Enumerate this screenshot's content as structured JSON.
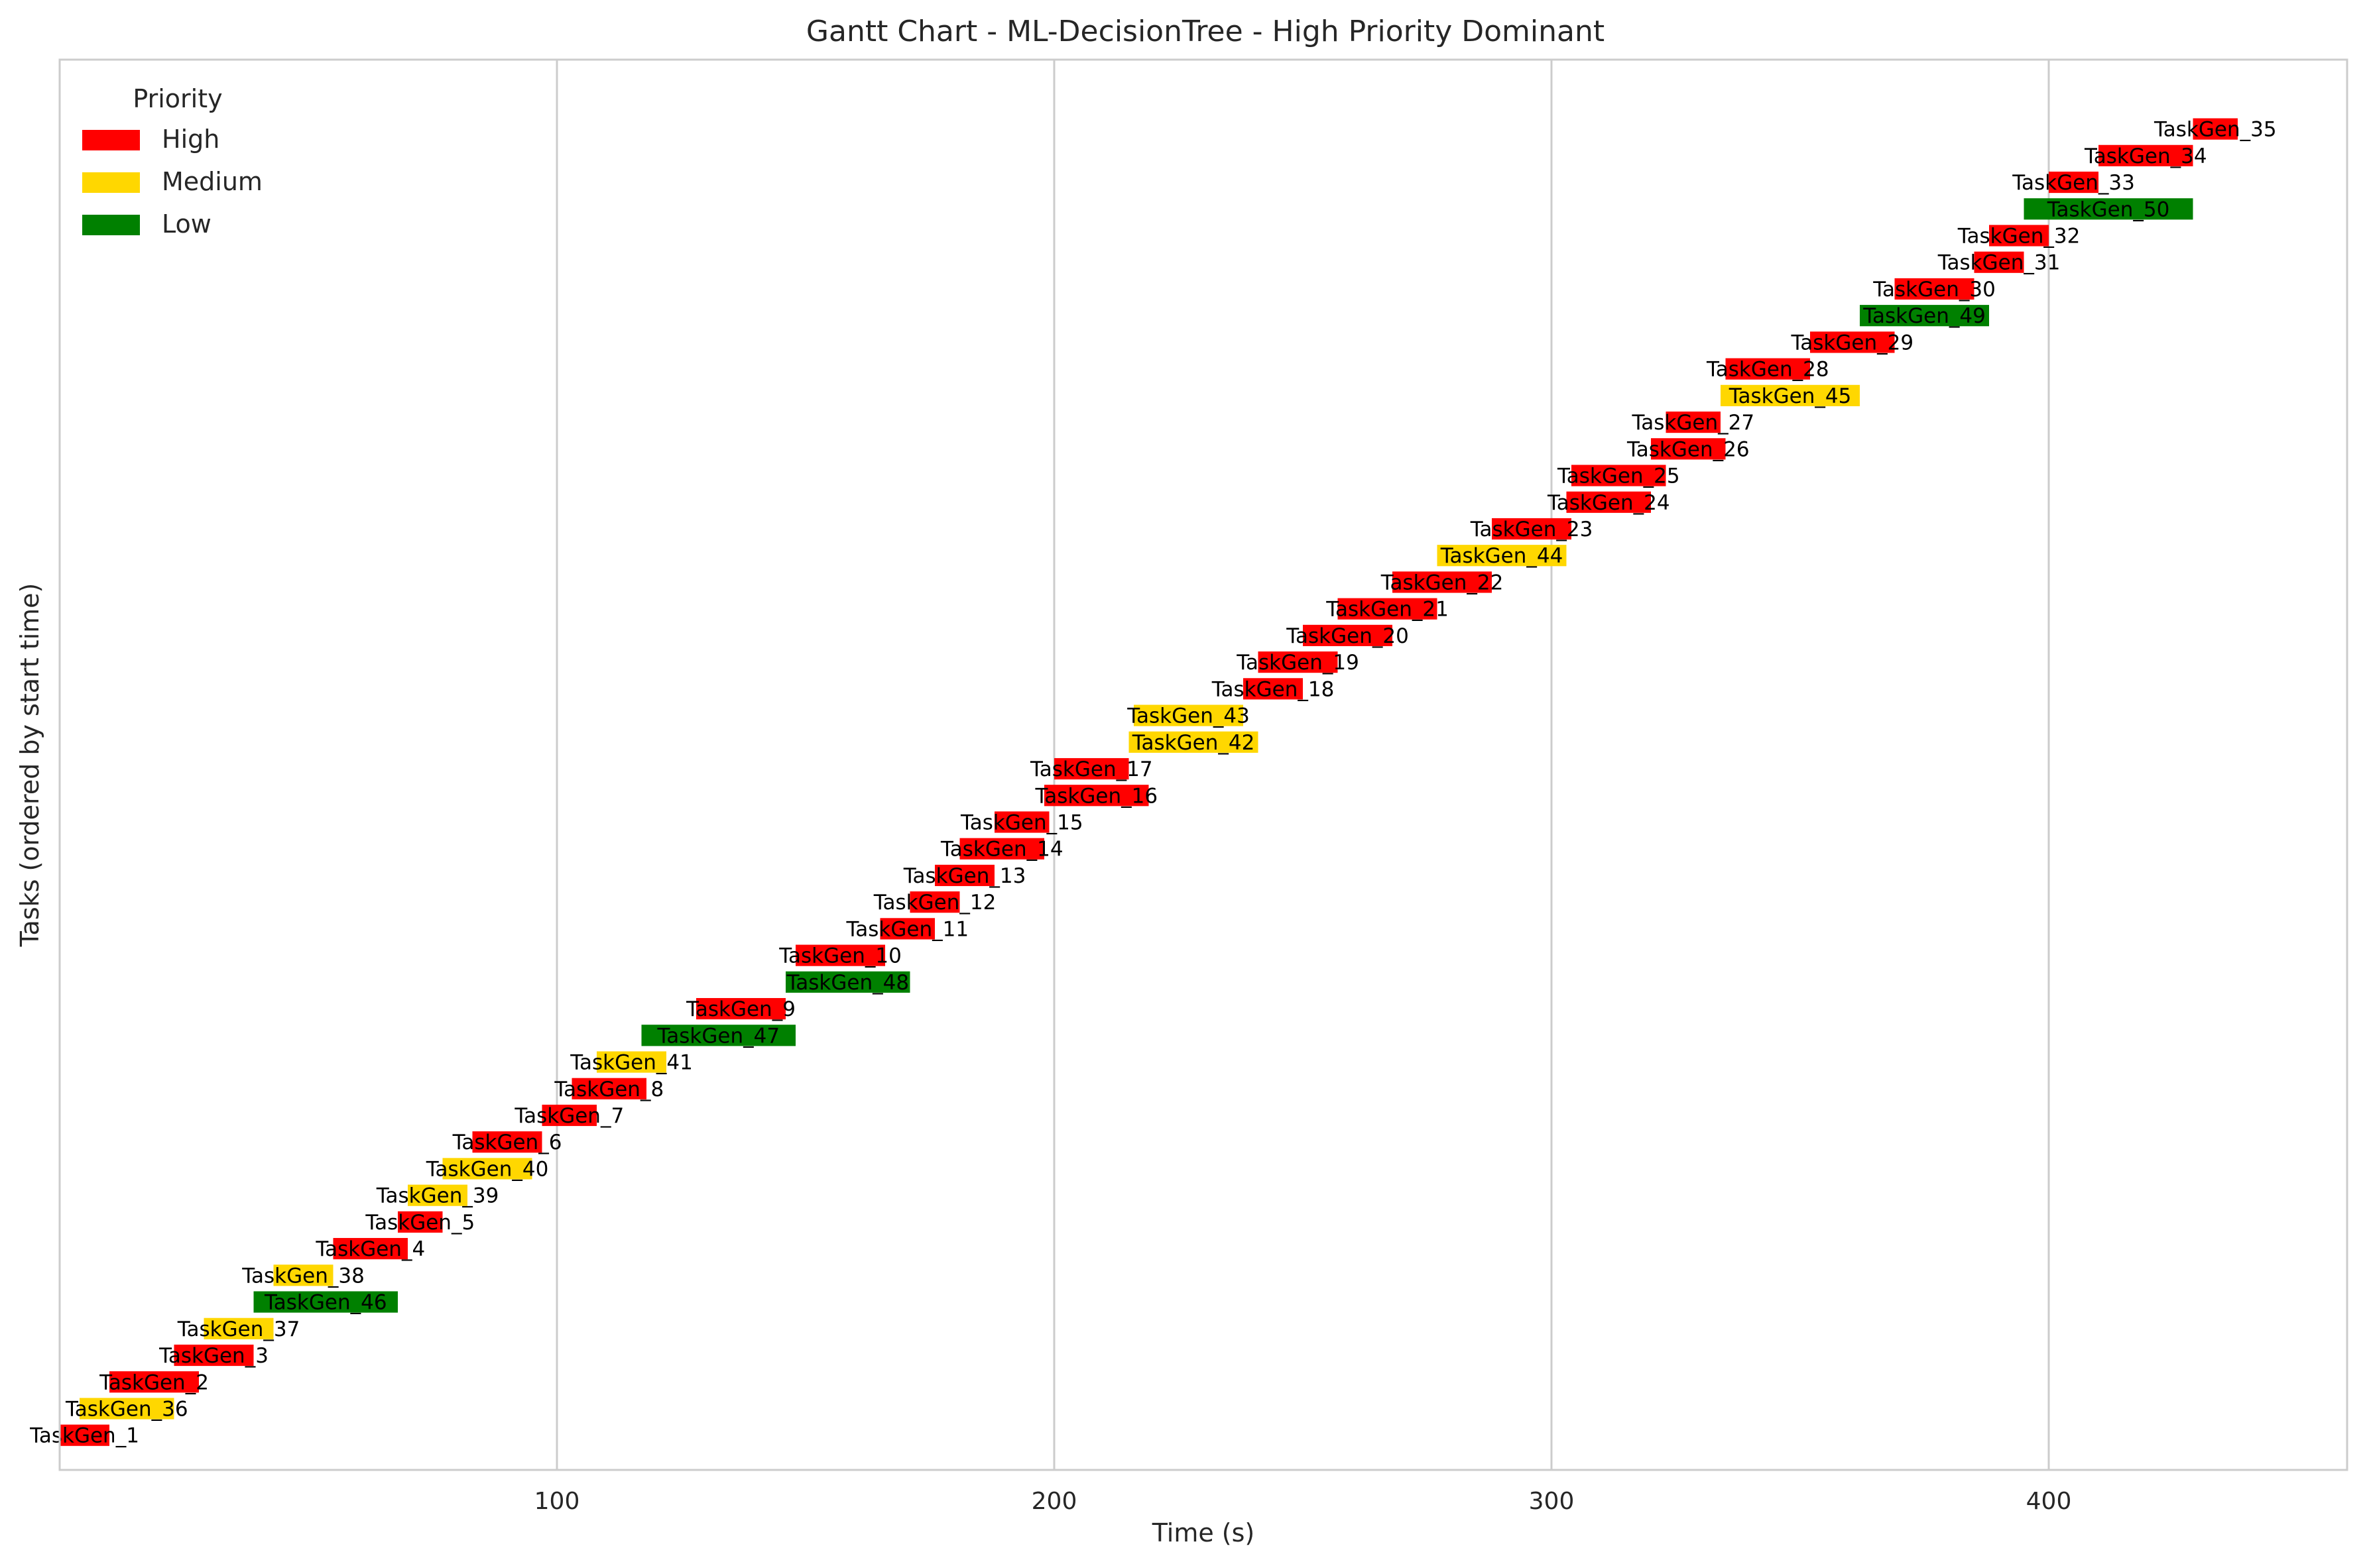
{
  "chart_data": {
    "type": "gantt",
    "title": "Gantt Chart - ML-DecisionTree - High Priority Dominant",
    "xlabel": "Time (s)",
    "ylabel": "Tasks (ordered by start time)",
    "xlim": [
      0,
      460
    ],
    "xticks": [
      100,
      200,
      300,
      400
    ],
    "grid": "vertical",
    "legend": {
      "title": "Priority",
      "placement": "top-left",
      "entries": [
        {
          "label": "High",
          "color": "#ff0000"
        },
        {
          "label": "Medium",
          "color": "#ffd700"
        },
        {
          "label": "Low",
          "color": "#008000"
        }
      ]
    },
    "tasks": [
      {
        "name": "TaskGen_1",
        "start": 0,
        "end": 10,
        "priority": "High"
      },
      {
        "name": "TaskGen_36",
        "start": 4,
        "end": 23,
        "priority": "Medium"
      },
      {
        "name": "TaskGen_2",
        "start": 10,
        "end": 28,
        "priority": "High"
      },
      {
        "name": "TaskGen_3",
        "start": 23,
        "end": 39,
        "priority": "High"
      },
      {
        "name": "TaskGen_37",
        "start": 29,
        "end": 43,
        "priority": "Medium"
      },
      {
        "name": "TaskGen_46",
        "start": 39,
        "end": 68,
        "priority": "Low"
      },
      {
        "name": "TaskGen_38",
        "start": 43,
        "end": 55,
        "priority": "Medium"
      },
      {
        "name": "TaskGen_4",
        "start": 55,
        "end": 70,
        "priority": "High"
      },
      {
        "name": "TaskGen_5",
        "start": 68,
        "end": 77,
        "priority": "High"
      },
      {
        "name": "TaskGen_39",
        "start": 70,
        "end": 82,
        "priority": "Medium"
      },
      {
        "name": "TaskGen_40",
        "start": 77,
        "end": 95,
        "priority": "Medium"
      },
      {
        "name": "TaskGen_6",
        "start": 83,
        "end": 97,
        "priority": "High"
      },
      {
        "name": "TaskGen_7",
        "start": 97,
        "end": 108,
        "priority": "High"
      },
      {
        "name": "TaskGen_8",
        "start": 103,
        "end": 118,
        "priority": "High"
      },
      {
        "name": "TaskGen_41",
        "start": 108,
        "end": 122,
        "priority": "Medium"
      },
      {
        "name": "TaskGen_47",
        "start": 117,
        "end": 148,
        "priority": "Low"
      },
      {
        "name": "TaskGen_9",
        "start": 128,
        "end": 146,
        "priority": "High"
      },
      {
        "name": "TaskGen_48",
        "start": 146,
        "end": 171,
        "priority": "Low"
      },
      {
        "name": "TaskGen_10",
        "start": 148,
        "end": 166,
        "priority": "High"
      },
      {
        "name": "TaskGen_11",
        "start": 165,
        "end": 176,
        "priority": "High"
      },
      {
        "name": "TaskGen_12",
        "start": 171,
        "end": 181,
        "priority": "High"
      },
      {
        "name": "TaskGen_13",
        "start": 176,
        "end": 188,
        "priority": "High"
      },
      {
        "name": "TaskGen_14",
        "start": 181,
        "end": 198,
        "priority": "High"
      },
      {
        "name": "TaskGen_15",
        "start": 188,
        "end": 199,
        "priority": "High"
      },
      {
        "name": "TaskGen_16",
        "start": 198,
        "end": 219,
        "priority": "High"
      },
      {
        "name": "TaskGen_17",
        "start": 200,
        "end": 215,
        "priority": "High"
      },
      {
        "name": "TaskGen_42",
        "start": 215,
        "end": 241,
        "priority": "Medium"
      },
      {
        "name": "TaskGen_43",
        "start": 216,
        "end": 238,
        "priority": "Medium"
      },
      {
        "name": "TaskGen_18",
        "start": 238,
        "end": 250,
        "priority": "High"
      },
      {
        "name": "TaskGen_19",
        "start": 241,
        "end": 257,
        "priority": "High"
      },
      {
        "name": "TaskGen_20",
        "start": 250,
        "end": 268,
        "priority": "High"
      },
      {
        "name": "TaskGen_21",
        "start": 257,
        "end": 277,
        "priority": "High"
      },
      {
        "name": "TaskGen_22",
        "start": 268,
        "end": 288,
        "priority": "High"
      },
      {
        "name": "TaskGen_44",
        "start": 277,
        "end": 303,
        "priority": "Medium"
      },
      {
        "name": "TaskGen_23",
        "start": 288,
        "end": 304,
        "priority": "High"
      },
      {
        "name": "TaskGen_24",
        "start": 303,
        "end": 320,
        "priority": "High"
      },
      {
        "name": "TaskGen_25",
        "start": 304,
        "end": 323,
        "priority": "High"
      },
      {
        "name": "TaskGen_26",
        "start": 320,
        "end": 335,
        "priority": "High"
      },
      {
        "name": "TaskGen_27",
        "start": 323,
        "end": 334,
        "priority": "High"
      },
      {
        "name": "TaskGen_45",
        "start": 334,
        "end": 362,
        "priority": "Medium"
      },
      {
        "name": "TaskGen_28",
        "start": 335,
        "end": 352,
        "priority": "High"
      },
      {
        "name": "TaskGen_29",
        "start": 352,
        "end": 369,
        "priority": "High"
      },
      {
        "name": "TaskGen_49",
        "start": 362,
        "end": 388,
        "priority": "Low"
      },
      {
        "name": "TaskGen_30",
        "start": 369,
        "end": 385,
        "priority": "High"
      },
      {
        "name": "TaskGen_31",
        "start": 385,
        "end": 395,
        "priority": "High"
      },
      {
        "name": "TaskGen_32",
        "start": 388,
        "end": 400,
        "priority": "High"
      },
      {
        "name": "TaskGen_50",
        "start": 395,
        "end": 429,
        "priority": "Low"
      },
      {
        "name": "TaskGen_33",
        "start": 400,
        "end": 410,
        "priority": "High"
      },
      {
        "name": "TaskGen_34",
        "start": 410,
        "end": 429,
        "priority": "High"
      },
      {
        "name": "TaskGen_35",
        "start": 429,
        "end": 438,
        "priority": "High"
      }
    ]
  }
}
